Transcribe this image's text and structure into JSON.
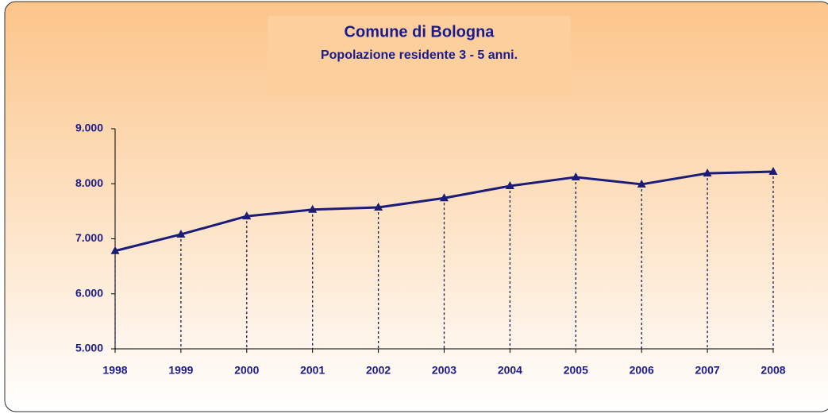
{
  "chart_data": {
    "type": "line",
    "title": "Comune di Bologna",
    "subtitle": "Popolazione residente 3 - 5 anni.",
    "categories": [
      "1998",
      "1999",
      "2000",
      "2001",
      "2002",
      "2003",
      "2004",
      "2005",
      "2006",
      "2007",
      "2008"
    ],
    "series": [
      {
        "name": "Popolazione residente 3 - 5 anni",
        "color": "#1b1b78",
        "values": [
          6780,
          7080,
          7410,
          7530,
          7570,
          7740,
          7960,
          8120,
          7990,
          8190,
          8220
        ]
      }
    ],
    "ylim": [
      5000,
      9000
    ],
    "yticks": [
      {
        "value": 5000,
        "label": "5.000"
      },
      {
        "value": 6000,
        "label": "6.000"
      },
      {
        "value": 7000,
        "label": "7.000"
      },
      {
        "value": 8000,
        "label": "8.000"
      },
      {
        "value": 9000,
        "label": "9.000"
      }
    ],
    "drop_lines": true
  }
}
